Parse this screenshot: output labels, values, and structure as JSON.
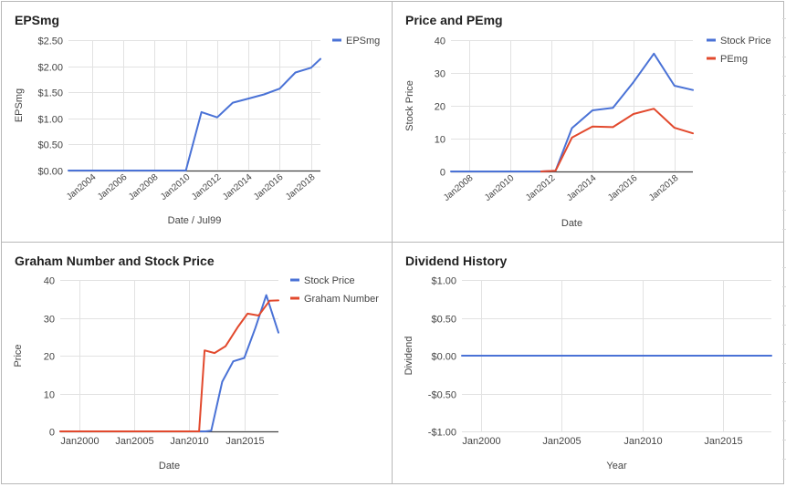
{
  "colors": {
    "blue": "#4a72d6",
    "red": "#e2492d",
    "grid": "#e2e2e2",
    "axis": "#444444",
    "text": "#444444"
  },
  "chart_data": [
    {
      "type": "line",
      "title": "EPSmg",
      "xlabel": "Date / Jul99",
      "ylabel": "EPSmg",
      "x_ticks": [
        "Jan2004",
        "Jan2006",
        "Jan2008",
        "Jan2010",
        "Jan2012",
        "Jan2014",
        "Jan2016",
        "Jan2018"
      ],
      "x_tick_values": [
        2004,
        2006,
        2008,
        2010,
        2012,
        2014,
        2016,
        2018
      ],
      "xlim": [
        2002.5,
        2018.6
      ],
      "y_ticks": [
        "$0.00",
        "$0.50",
        "$1.00",
        "$1.50",
        "$2.00",
        "$2.50"
      ],
      "y_tick_values": [
        0,
        0.5,
        1,
        1.5,
        2,
        2.5
      ],
      "ylim": [
        0,
        2.5
      ],
      "legend_position": "top-right",
      "series": [
        {
          "name": "EPSmg",
          "color": "blue",
          "x": [
            2002.5,
            2004,
            2006,
            2008,
            2010,
            2011,
            2012,
            2013,
            2014,
            2015,
            2016,
            2017,
            2018,
            2018.6
          ],
          "y": [
            0,
            0,
            0,
            0,
            0,
            1.12,
            1.02,
            1.3,
            1.38,
            1.46,
            1.57,
            1.88,
            1.97,
            2.14
          ]
        }
      ]
    },
    {
      "type": "line",
      "title": "Price and PEmg",
      "xlabel": "Date",
      "ylabel": "Stock Price",
      "x_ticks": [
        "Jan2008",
        "Jan2010",
        "Jan2012",
        "Jan2014",
        "Jan2016",
        "Jan2018"
      ],
      "x_tick_values": [
        2008,
        2010,
        2012,
        2014,
        2016,
        2018
      ],
      "xlim": [
        2007.1,
        2018.9
      ],
      "y_ticks": [
        "0",
        "10",
        "20",
        "30",
        "40"
      ],
      "y_tick_values": [
        0,
        10,
        20,
        30,
        40
      ],
      "ylim": [
        0,
        40
      ],
      "legend_position": "top-right",
      "series": [
        {
          "name": "Stock Price",
          "color": "blue",
          "x": [
            2007.1,
            2008,
            2010,
            2011.5,
            2012.2,
            2013,
            2014,
            2015,
            2016,
            2017,
            2018,
            2018.9
          ],
          "y": [
            0,
            0,
            0,
            0,
            0.2,
            13.2,
            18.6,
            19.4,
            27.2,
            35.9,
            26.1,
            24.8
          ]
        },
        {
          "name": "PEmg",
          "color": "red",
          "x": [
            2011.5,
            2012.2,
            2013,
            2014,
            2015,
            2016,
            2017,
            2018,
            2018.9
          ],
          "y": [
            0,
            0.2,
            10.3,
            13.7,
            13.5,
            17.5,
            19.1,
            13.3,
            11.6
          ]
        }
      ]
    },
    {
      "type": "line",
      "title": "Graham Number and Stock Price",
      "xlabel": "Date",
      "ylabel": "Price",
      "x_ticks": [
        "Jan2000",
        "Jan2005",
        "Jan2010",
        "Jan2015"
      ],
      "x_tick_values": [
        2000,
        2005,
        2010,
        2015
      ],
      "xlim": [
        1998.3,
        2018.1
      ],
      "y_ticks": [
        "0",
        "10",
        "20",
        "30",
        "40"
      ],
      "y_tick_values": [
        0,
        10,
        20,
        30,
        40
      ],
      "ylim": [
        0,
        40
      ],
      "legend_position": "top-right",
      "series": [
        {
          "name": "Stock Price",
          "color": "blue",
          "x": [
            1998.3,
            2011.5,
            2012,
            2013,
            2014,
            2015,
            2016,
            2017,
            2018.1
          ],
          "y": [
            0,
            0,
            0.2,
            13.1,
            18.5,
            19.4,
            27.3,
            36.0,
            26.1
          ]
        },
        {
          "name": "Graham Number",
          "color": "red",
          "x": [
            1998.3,
            2010.9,
            2011.4,
            2012.3,
            2013.3,
            2014.4,
            2015.3,
            2016.3,
            2017.3,
            2018.1
          ],
          "y": [
            0,
            0,
            21.4,
            20.7,
            22.5,
            27.5,
            31.1,
            30.6,
            34.5,
            34.6
          ]
        }
      ]
    },
    {
      "type": "line",
      "title": "Dividend History",
      "xlabel": "Year",
      "ylabel": "Dividend",
      "x_ticks": [
        "Jan2000",
        "Jan2005",
        "Jan2010",
        "Jan2015"
      ],
      "x_tick_values": [
        2000,
        2005,
        2010,
        2015
      ],
      "xlim": [
        1998.8,
        2018.0
      ],
      "y_ticks": [
        "-$1.00",
        "-$0.50",
        "$0.00",
        "$0.50",
        "$1.00"
      ],
      "y_tick_values": [
        -1,
        -0.5,
        0,
        0.5,
        1
      ],
      "ylim": [
        -1,
        1
      ],
      "legend_position": "none",
      "series": [
        {
          "name": "",
          "color": "blue",
          "x": [
            1998.8,
            2018.0
          ],
          "y": [
            0,
            0
          ]
        }
      ]
    }
  ]
}
